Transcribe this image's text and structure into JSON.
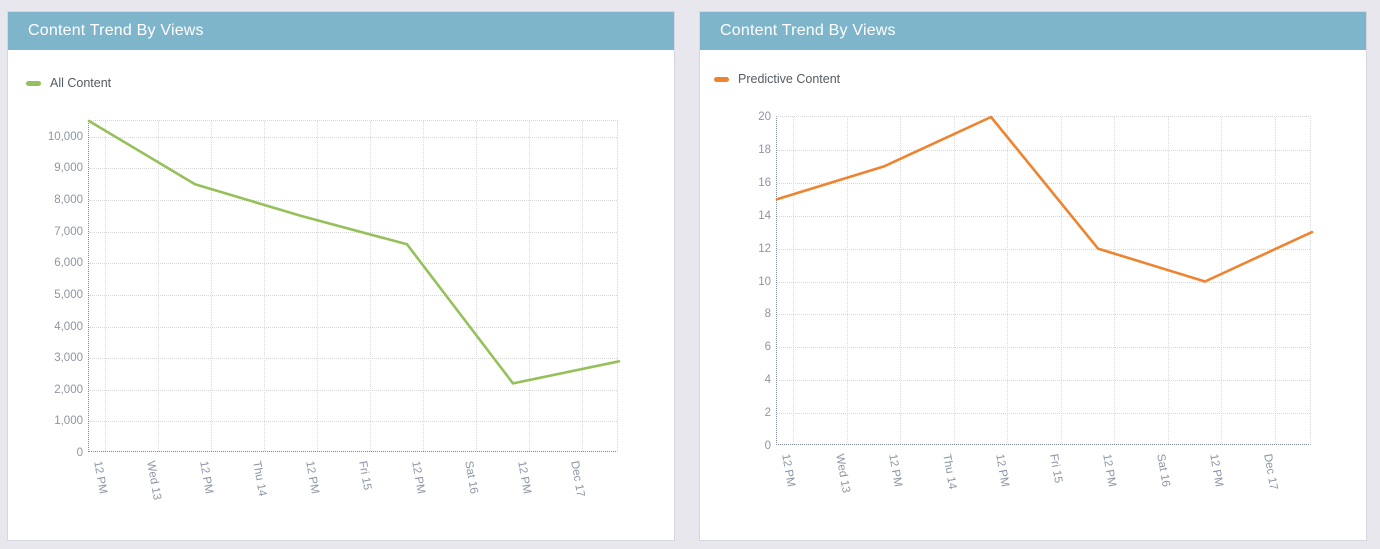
{
  "page": {
    "background_color": "#E7E7ED",
    "header_color": "#7FB5CB"
  },
  "panels": [
    {
      "title": "Content Trend By Views",
      "legend": [
        {
          "label": "All Content",
          "color": "#96C05A"
        }
      ]
    },
    {
      "title": "Content Trend By Views",
      "legend": [
        {
          "label": "Predictive Content",
          "color": "#EE8330"
        }
      ]
    }
  ],
  "chart_data": [
    {
      "type": "line",
      "title": "Content Trend By Views",
      "series": [
        {
          "name": "All Content",
          "color": "#96C05A",
          "values": [
            10500,
            8500,
            7500,
            6600,
            2200,
            2900
          ]
        }
      ],
      "x_tick_labels": [
        "12 PM",
        "Wed 13",
        "12 PM",
        "Thu 14",
        "12 PM",
        "Fri 15",
        "12 PM",
        "Sat 16",
        "12 PM",
        "Dec 17"
      ],
      "y_ticks": [
        {
          "value": 0,
          "label": "0"
        },
        {
          "value": 1000,
          "label": "1,000"
        },
        {
          "value": 2000,
          "label": "2,000"
        },
        {
          "value": 3000,
          "label": "3,000"
        },
        {
          "value": 4000,
          "label": "4,000"
        },
        {
          "value": 5000,
          "label": "5,000"
        },
        {
          "value": 6000,
          "label": "6,000"
        },
        {
          "value": 7000,
          "label": "7,000"
        },
        {
          "value": 8000,
          "label": "8,000"
        },
        {
          "value": 9000,
          "label": "9,000"
        },
        {
          "value": 10000,
          "label": "10,000"
        }
      ],
      "ylim": [
        0,
        10500
      ],
      "grid": "dotted",
      "legend_position": "top-left",
      "x_label_rotation_deg": 80
    },
    {
      "type": "line",
      "title": "Content Trend By Views",
      "series": [
        {
          "name": "Predictive Content",
          "color": "#EE8330",
          "values": [
            15,
            17,
            20,
            12,
            10,
            13
          ]
        }
      ],
      "x_tick_labels": [
        "12 PM",
        "Wed 13",
        "12 PM",
        "Thu 14",
        "12 PM",
        "Fri 15",
        "12 PM",
        "Sat 16",
        "12 PM",
        "Dec 17"
      ],
      "y_ticks": [
        {
          "value": 0,
          "label": "0"
        },
        {
          "value": 2,
          "label": "2"
        },
        {
          "value": 4,
          "label": "4"
        },
        {
          "value": 6,
          "label": "6"
        },
        {
          "value": 8,
          "label": "8"
        },
        {
          "value": 10,
          "label": "10"
        },
        {
          "value": 12,
          "label": "12"
        },
        {
          "value": 14,
          "label": "14"
        },
        {
          "value": 16,
          "label": "16"
        },
        {
          "value": 18,
          "label": "18"
        },
        {
          "value": 20,
          "label": "20"
        }
      ],
      "ylim": [
        0,
        20
      ],
      "grid": "dotted",
      "legend_position": "top-left",
      "x_label_rotation_deg": 80
    }
  ]
}
